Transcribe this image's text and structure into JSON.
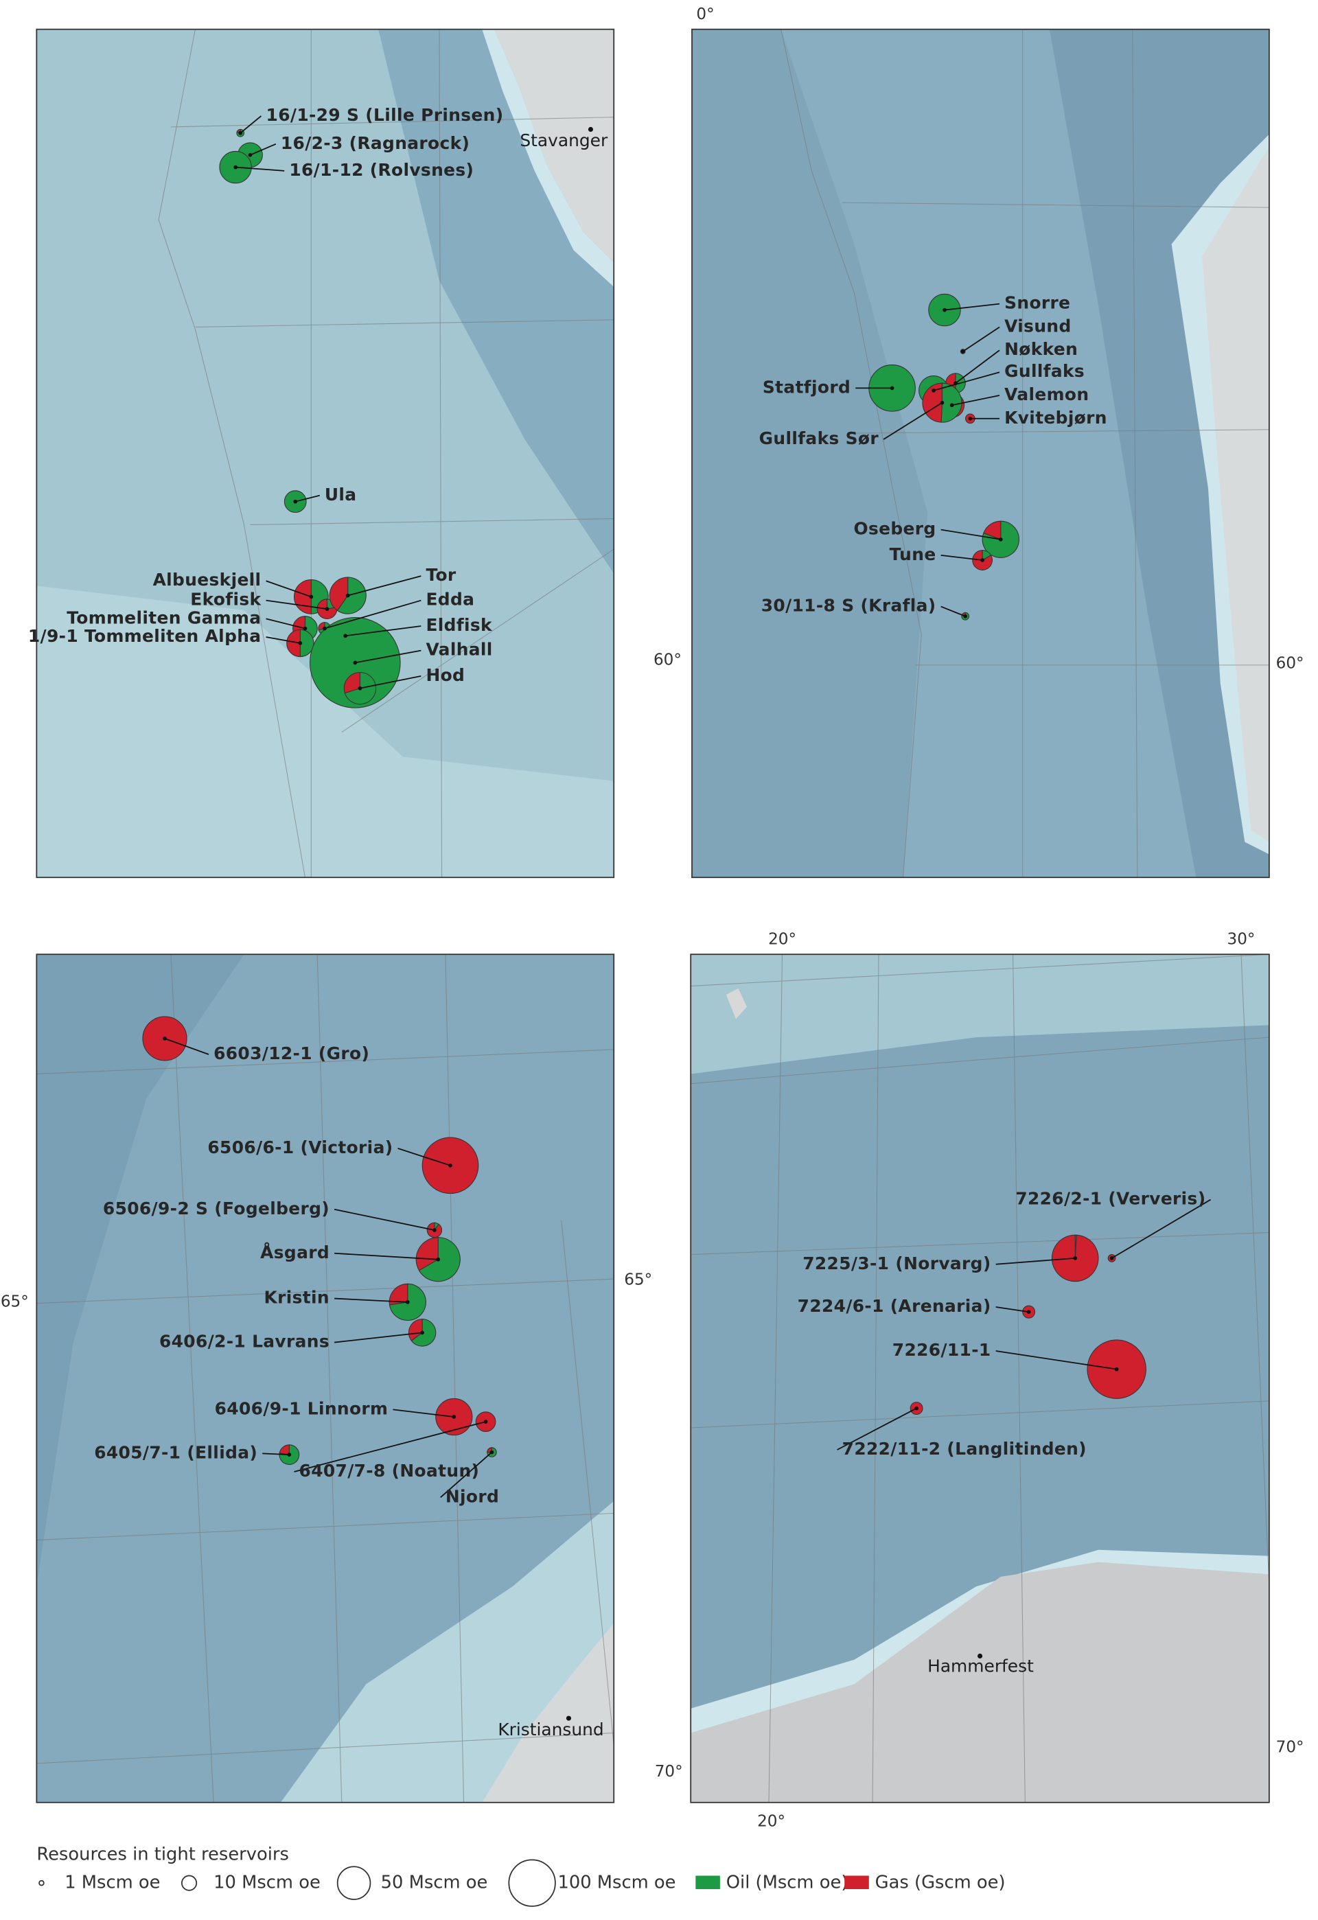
{
  "panels": [
    {
      "fields": [
        {
          "name": "16/1-29 S (Lille Prinsen)",
          "oil": 2,
          "gas": 0.5
        },
        {
          "name": "16/2-3 (Ragnarock)",
          "oil": 28,
          "gas": 0
        },
        {
          "name": "16/1-12 (Rolvsnes)",
          "oil": 47,
          "gas": 0
        },
        {
          "name": "Ula",
          "oil": 22,
          "gas": 0
        },
        {
          "name": "Albueskjell",
          "oil": 27,
          "gas": 27
        },
        {
          "name": "Ekofisk",
          "oil": 4,
          "gas": 14
        },
        {
          "name": "Tommeliten Gamma",
          "oil": 14,
          "gas": 14
        },
        {
          "name": "1/9-1 Tommeliten Alpha",
          "oil": 17,
          "gas": 17
        },
        {
          "name": "Tor",
          "oil": 37,
          "gas": 25
        },
        {
          "name": "Edda",
          "oil": 5,
          "gas": 2
        },
        {
          "name": "Eldfisk",
          "oil": 36,
          "gas": 4
        },
        {
          "name": "Valhall",
          "oil": 379,
          "gas": 0
        },
        {
          "name": "Hod",
          "oil": 33,
          "gas": 14
        }
      ],
      "cities": [
        "Stavanger"
      ],
      "graticule": []
    },
    {
      "fields": [
        {
          "name": "Snorre",
          "oil": 47,
          "gas": 0
        },
        {
          "name": "Visund",
          "oil": 1,
          "gas": 0
        },
        {
          "name": "Nøkken",
          "oil": 9,
          "gas": 9
        },
        {
          "name": "Gullfaks",
          "oil": 40,
          "gas": 0
        },
        {
          "name": "Statfjord",
          "oil": 100,
          "gas": 0
        },
        {
          "name": "Valemon",
          "oil": 5,
          "gas": 23
        },
        {
          "name": "Kvitebjørn",
          "oil": 0,
          "gas": 4
        },
        {
          "name": "Gullfaks Sør",
          "oil": 36,
          "gas": 35
        },
        {
          "name": "Oseberg",
          "oil": 50,
          "gas": 12
        },
        {
          "name": "Tune",
          "oil": 3,
          "gas": 15
        },
        {
          "name": "30/11-8 S (Krafla)",
          "oil": 2,
          "gas": 0.5
        }
      ],
      "cities": [],
      "graticule": [
        "0°",
        "60°",
        "60°"
      ]
    },
    {
      "fields": [
        {
          "name": "6603/12-1 (Gro)",
          "oil": 0,
          "gas": 90
        },
        {
          "name": "6506/6-1 (Victoria)",
          "oil": 0,
          "gas": 146
        },
        {
          "name": "6506/9-2 S (Fogelberg)",
          "oil": 1,
          "gas": 9
        },
        {
          "name": "Åsgard",
          "oil": 60,
          "gas": 30
        },
        {
          "name": "Kristin",
          "oil": 45,
          "gas": 17
        },
        {
          "name": "6406/2-1 Lavrans",
          "oil": 22,
          "gas": 12
        },
        {
          "name": "6406/9-1 Linnorm",
          "oil": 0,
          "gas": 62
        },
        {
          "name": "6407/7-8 (Noatun)",
          "oil": 0,
          "gas": 18
        },
        {
          "name": "6405/7-1 (Ellida)",
          "oil": 14,
          "gas": 4
        },
        {
          "name": "Njord",
          "oil": 3,
          "gas": 1
        }
      ],
      "cities": [
        "Kristiansund"
      ],
      "graticule": [
        "65°",
        "65°"
      ]
    },
    {
      "fields": [
        {
          "name": "7226/2-1 (Ververis)",
          "oil": 0,
          "gas": 2.5
        },
        {
          "name": "7225/3-1 (Norvarg)",
          "oil": 1,
          "gas": 99
        },
        {
          "name": "7224/6-1 (Arenaria)",
          "oil": 0,
          "gas": 7
        },
        {
          "name": "7226/11-1",
          "oil": 0,
          "gas": 160
        },
        {
          "name": "7222/11-2 (Langlitinden)",
          "oil": 0,
          "gas": 7
        }
      ],
      "cities": [
        "Hammerfest"
      ],
      "graticule": [
        "20°",
        "30°",
        "20°",
        "70°",
        "70°"
      ]
    }
  ],
  "legend": {
    "title": "Resources in tight reservoirs",
    "sizes": [
      {
        "label": "1 Mscm oe",
        "value": 1
      },
      {
        "label": "10 Mscm oe",
        "value": 10
      },
      {
        "label": "50 Mscm oe",
        "value": 50
      },
      {
        "label": "100 Mscm oe",
        "value": 100
      }
    ],
    "oil": {
      "label": "Oil (Mscm oe)",
      "color": "#1f9a44"
    },
    "gas": {
      "label": "Gas (Gscm oe)",
      "color": "#d0202d"
    }
  }
}
